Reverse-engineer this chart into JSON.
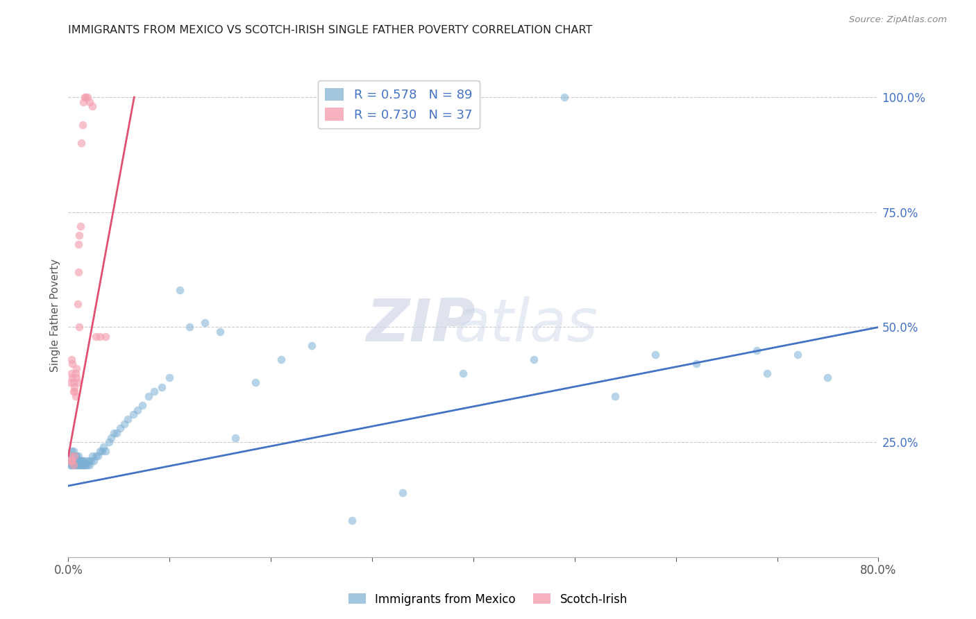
{
  "title": "IMMIGRANTS FROM MEXICO VS SCOTCH-IRISH SINGLE FATHER POVERTY CORRELATION CHART",
  "source": "Source: ZipAtlas.com",
  "ylabel": "Single Father Poverty",
  "yticks": [
    0.0,
    0.25,
    0.5,
    0.75,
    1.0
  ],
  "ytick_labels": [
    "",
    "25.0%",
    "50.0%",
    "75.0%",
    "100.0%"
  ],
  "xlim": [
    0.0,
    0.8
  ],
  "ylim": [
    0.0,
    1.05
  ],
  "blue_R": 0.578,
  "blue_N": 89,
  "pink_R": 0.73,
  "pink_N": 37,
  "blue_color": "#7BAFD4",
  "pink_color": "#F4A0B0",
  "blue_line_color": "#4472C4",
  "pink_line_color": "#E05070",
  "background_color": "#FFFFFF",
  "grid_color": "#CCCCCC",
  "blue_scatter_x": [
    0.001,
    0.001,
    0.002,
    0.002,
    0.002,
    0.003,
    0.003,
    0.003,
    0.003,
    0.004,
    0.004,
    0.004,
    0.005,
    0.005,
    0.005,
    0.005,
    0.006,
    0.006,
    0.006,
    0.007,
    0.007,
    0.007,
    0.008,
    0.008,
    0.008,
    0.009,
    0.009,
    0.01,
    0.01,
    0.01,
    0.011,
    0.011,
    0.012,
    0.012,
    0.013,
    0.013,
    0.014,
    0.014,
    0.015,
    0.015,
    0.016,
    0.017,
    0.018,
    0.019,
    0.02,
    0.021,
    0.022,
    0.024,
    0.025,
    0.027,
    0.029,
    0.031,
    0.033,
    0.035,
    0.037,
    0.04,
    0.042,
    0.045,
    0.048,
    0.051,
    0.055,
    0.059,
    0.064,
    0.068,
    0.073,
    0.079,
    0.085,
    0.092,
    0.1,
    0.11,
    0.12,
    0.135,
    0.15,
    0.165,
    0.185,
    0.21,
    0.24,
    0.28,
    0.33,
    0.39,
    0.46,
    0.54,
    0.62,
    0.68,
    0.72,
    0.75,
    0.49,
    0.58,
    0.69
  ],
  "blue_scatter_y": [
    0.21,
    0.22,
    0.2,
    0.21,
    0.22,
    0.2,
    0.21,
    0.22,
    0.23,
    0.2,
    0.21,
    0.22,
    0.2,
    0.21,
    0.22,
    0.23,
    0.2,
    0.21,
    0.22,
    0.2,
    0.21,
    0.22,
    0.2,
    0.21,
    0.22,
    0.2,
    0.21,
    0.2,
    0.21,
    0.22,
    0.2,
    0.21,
    0.2,
    0.21,
    0.2,
    0.21,
    0.2,
    0.21,
    0.2,
    0.21,
    0.2,
    0.2,
    0.21,
    0.2,
    0.21,
    0.2,
    0.21,
    0.22,
    0.21,
    0.22,
    0.22,
    0.23,
    0.23,
    0.24,
    0.23,
    0.25,
    0.26,
    0.27,
    0.27,
    0.28,
    0.29,
    0.3,
    0.31,
    0.32,
    0.33,
    0.35,
    0.36,
    0.37,
    0.39,
    0.58,
    0.5,
    0.51,
    0.49,
    0.26,
    0.38,
    0.43,
    0.46,
    0.08,
    0.14,
    0.4,
    0.43,
    0.35,
    0.42,
    0.45,
    0.44,
    0.39,
    1.0,
    0.44,
    0.4
  ],
  "pink_scatter_x": [
    0.001,
    0.002,
    0.002,
    0.003,
    0.003,
    0.003,
    0.004,
    0.004,
    0.004,
    0.005,
    0.005,
    0.005,
    0.006,
    0.006,
    0.006,
    0.007,
    0.007,
    0.008,
    0.008,
    0.009,
    0.009,
    0.01,
    0.01,
    0.011,
    0.011,
    0.012,
    0.013,
    0.014,
    0.015,
    0.016,
    0.017,
    0.019,
    0.021,
    0.024,
    0.027,
    0.031,
    0.037
  ],
  "pink_scatter_y": [
    0.21,
    0.22,
    0.38,
    0.21,
    0.4,
    0.43,
    0.21,
    0.39,
    0.42,
    0.2,
    0.36,
    0.38,
    0.36,
    0.37,
    0.22,
    0.35,
    0.4,
    0.39,
    0.41,
    0.38,
    0.55,
    0.62,
    0.68,
    0.5,
    0.7,
    0.72,
    0.9,
    0.94,
    0.99,
    1.0,
    1.0,
    1.0,
    0.99,
    0.98,
    0.48,
    0.48,
    0.48
  ],
  "blue_line_x": [
    0.0,
    0.8
  ],
  "blue_line_y": [
    0.155,
    0.5
  ],
  "pink_line_x": [
    0.0,
    0.065
  ],
  "pink_line_y": [
    0.22,
    1.0
  ]
}
